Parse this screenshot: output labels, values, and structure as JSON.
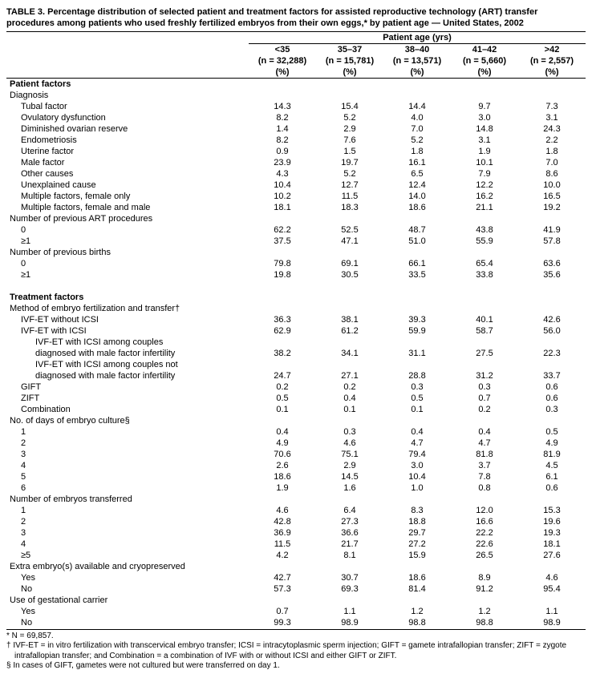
{
  "title": "TABLE 3. Percentage distribution of selected patient and treatment factors for assisted reproductive technology (ART) transfer procedures among patients who used freshly fertilized embryos from their own eggs,* by patient age — United States, 2002",
  "header": {
    "span_label": "Patient age (yrs)",
    "cols": [
      {
        "age": "<35",
        "n": "(n = 32,288)",
        "pct": "(%)"
      },
      {
        "age": "35–37",
        "n": "(n = 15,781)",
        "pct": "(%)"
      },
      {
        "age": "38–40",
        "n": "(n = 13,571)",
        "pct": "(%)"
      },
      {
        "age": "41–42",
        "n": "(n = 5,660)",
        "pct": "(%)"
      },
      {
        "age": ">42",
        "n": "(n = 2,557)",
        "pct": "(%)"
      }
    ]
  },
  "rows": [
    {
      "label": "Patient factors",
      "type": "section"
    },
    {
      "label": "Diagnosis",
      "type": "group"
    },
    {
      "label": "Tubal factor",
      "indent": 1,
      "v": [
        "14.3",
        "15.4",
        "14.4",
        "9.7",
        "7.3"
      ]
    },
    {
      "label": "Ovulatory dysfunction",
      "indent": 1,
      "v": [
        "8.2",
        "5.2",
        "4.0",
        "3.0",
        "3.1"
      ]
    },
    {
      "label": "Diminished ovarian reserve",
      "indent": 1,
      "v": [
        "1.4",
        "2.9",
        "7.0",
        "14.8",
        "24.3"
      ]
    },
    {
      "label": "Endometriosis",
      "indent": 1,
      "v": [
        "8.2",
        "7.6",
        "5.2",
        "3.1",
        "2.2"
      ]
    },
    {
      "label": "Uterine factor",
      "indent": 1,
      "v": [
        "0.9",
        "1.5",
        "1.8",
        "1.9",
        "1.8"
      ]
    },
    {
      "label": "Male factor",
      "indent": 1,
      "v": [
        "23.9",
        "19.7",
        "16.1",
        "10.1",
        "7.0"
      ]
    },
    {
      "label": "Other causes",
      "indent": 1,
      "v": [
        "4.3",
        "5.2",
        "6.5",
        "7.9",
        "8.6"
      ]
    },
    {
      "label": "Unexplained cause",
      "indent": 1,
      "v": [
        "10.4",
        "12.7",
        "12.4",
        "12.2",
        "10.0"
      ]
    },
    {
      "label": "Multiple factors, female only",
      "indent": 1,
      "v": [
        "10.2",
        "11.5",
        "14.0",
        "16.2",
        "16.5"
      ]
    },
    {
      "label": "Multiple factors, female and male",
      "indent": 1,
      "v": [
        "18.1",
        "18.3",
        "18.6",
        "21.1",
        "19.2"
      ]
    },
    {
      "label": "Number of previous ART procedures",
      "type": "group"
    },
    {
      "label": "0",
      "indent": 1,
      "v": [
        "62.2",
        "52.5",
        "48.7",
        "43.8",
        "41.9"
      ]
    },
    {
      "label": "≥1",
      "indent": 1,
      "v": [
        "37.5",
        "47.1",
        "51.0",
        "55.9",
        "57.8"
      ]
    },
    {
      "label": "Number of previous births",
      "type": "group"
    },
    {
      "label": "0",
      "indent": 1,
      "v": [
        "79.8",
        "69.1",
        "66.1",
        "65.4",
        "63.6"
      ]
    },
    {
      "label": "≥1",
      "indent": 1,
      "v": [
        "19.8",
        "30.5",
        "33.5",
        "33.8",
        "35.6"
      ]
    },
    {
      "type": "spacer"
    },
    {
      "label": "Treatment factors",
      "type": "section"
    },
    {
      "label": "Method of embryo fertilization and transfer†",
      "type": "group"
    },
    {
      "label": "IVF-ET without ICSI",
      "indent": 1,
      "v": [
        "36.3",
        "38.1",
        "39.3",
        "40.1",
        "42.6"
      ]
    },
    {
      "label": "IVF-ET with ICSI",
      "indent": 1,
      "v": [
        "62.9",
        "61.2",
        "59.9",
        "58.7",
        "56.0"
      ]
    },
    {
      "label": "IVF-ET with ICSI among couples",
      "indent": 2,
      "type": "textonly"
    },
    {
      "label": "diagnosed with male factor infertility",
      "indent": 2,
      "v": [
        "38.2",
        "34.1",
        "31.1",
        "27.5",
        "22.3"
      ]
    },
    {
      "label": "IVF-ET with ICSI among couples not",
      "indent": 2,
      "type": "textonly"
    },
    {
      "label": "diagnosed with male factor infertility",
      "indent": 2,
      "v": [
        "24.7",
        "27.1",
        "28.8",
        "31.2",
        "33.7"
      ]
    },
    {
      "label": "GIFT",
      "indent": 1,
      "v": [
        "0.2",
        "0.2",
        "0.3",
        "0.3",
        "0.6"
      ]
    },
    {
      "label": "ZIFT",
      "indent": 1,
      "v": [
        "0.5",
        "0.4",
        "0.5",
        "0.7",
        "0.6"
      ]
    },
    {
      "label": "Combination",
      "indent": 1,
      "v": [
        "0.1",
        "0.1",
        "0.1",
        "0.2",
        "0.3"
      ]
    },
    {
      "label": "No. of days of embryo culture§",
      "type": "group"
    },
    {
      "label": "1",
      "indent": 1,
      "v": [
        "0.4",
        "0.3",
        "0.4",
        "0.4",
        "0.5"
      ]
    },
    {
      "label": "2",
      "indent": 1,
      "v": [
        "4.9",
        "4.6",
        "4.7",
        "4.7",
        "4.9"
      ]
    },
    {
      "label": "3",
      "indent": 1,
      "v": [
        "70.6",
        "75.1",
        "79.4",
        "81.8",
        "81.9"
      ]
    },
    {
      "label": "4",
      "indent": 1,
      "v": [
        "2.6",
        "2.9",
        "3.0",
        "3.7",
        "4.5"
      ]
    },
    {
      "label": "5",
      "indent": 1,
      "v": [
        "18.6",
        "14.5",
        "10.4",
        "7.8",
        "6.1"
      ]
    },
    {
      "label": "6",
      "indent": 1,
      "v": [
        "1.9",
        "1.6",
        "1.0",
        "0.8",
        "0.6"
      ]
    },
    {
      "label": "Number of embryos transferred",
      "type": "group"
    },
    {
      "label": "1",
      "indent": 1,
      "v": [
        "4.6",
        "6.4",
        "8.3",
        "12.0",
        "15.3"
      ]
    },
    {
      "label": "2",
      "indent": 1,
      "v": [
        "42.8",
        "27.3",
        "18.8",
        "16.6",
        "19.6"
      ]
    },
    {
      "label": "3",
      "indent": 1,
      "v": [
        "36.9",
        "36.6",
        "29.7",
        "22.2",
        "19.3"
      ]
    },
    {
      "label": "4",
      "indent": 1,
      "v": [
        "11.5",
        "21.7",
        "27.2",
        "22.6",
        "18.1"
      ]
    },
    {
      "label": "≥5",
      "indent": 1,
      "v": [
        "4.2",
        "8.1",
        "15.9",
        "26.5",
        "27.6"
      ]
    },
    {
      "label": "Extra embryo(s) available and cryopreserved",
      "type": "group"
    },
    {
      "label": "Yes",
      "indent": 1,
      "v": [
        "42.7",
        "30.7",
        "18.6",
        "8.9",
        "4.6"
      ]
    },
    {
      "label": "No",
      "indent": 1,
      "v": [
        "57.3",
        "69.3",
        "81.4",
        "91.2",
        "95.4"
      ]
    },
    {
      "label": "Use of gestational carrier",
      "type": "group"
    },
    {
      "label": "Yes",
      "indent": 1,
      "v": [
        "0.7",
        "1.1",
        "1.2",
        "1.2",
        "1.1"
      ]
    },
    {
      "label": "No",
      "indent": 1,
      "v": [
        "99.3",
        "98.9",
        "98.8",
        "98.8",
        "98.9"
      ]
    }
  ],
  "footnotes": [
    "* N = 69,857.",
    "† IVF-ET = in vitro fertilization with transcervical embryo transfer; ICSI = intracytoplasmic sperm injection; GIFT = gamete intrafallopian transfer; ZIFT = zygote intrafallopian transfer; and Combination = a combination of IVF with or without ICSI and either GIFT or ZIFT.",
    "§ In cases of GIFT, gametes were not cultured but were transferred on day 1."
  ]
}
